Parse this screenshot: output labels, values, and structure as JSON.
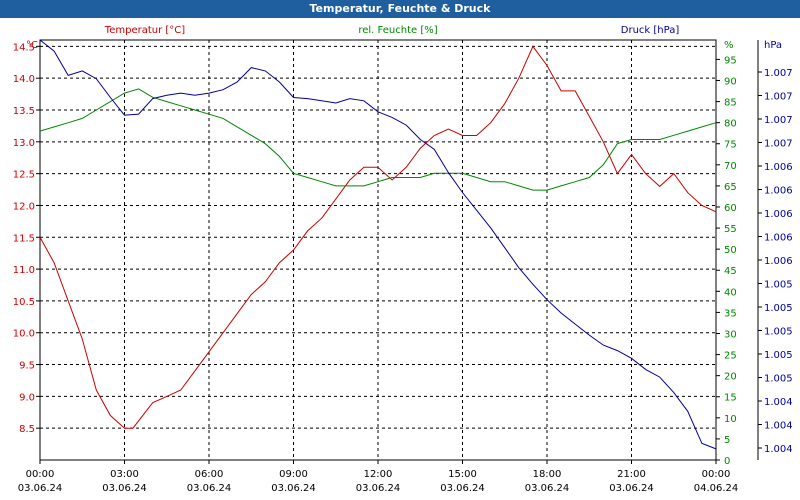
{
  "window": {
    "title": "Temperatur, Feuchte & Druck"
  },
  "colors": {
    "temperature": "#cc0000",
    "humidity": "#008800",
    "pressure": "#000099",
    "title_bar": "#1f5f9f",
    "grid": "#000000"
  },
  "chart_data": {
    "type": "line",
    "title": "Temperatur, Feuchte & Druck",
    "grid": true,
    "x_ticks": [
      {
        "time": "00:00",
        "date": "03.06.24"
      },
      {
        "time": "03:00",
        "date": "03.06.24"
      },
      {
        "time": "06:00",
        "date": "03.06.24"
      },
      {
        "time": "09:00",
        "date": "03.06.24"
      },
      {
        "time": "12:00",
        "date": "03.06.24"
      },
      {
        "time": "15:00",
        "date": "03.06.24"
      },
      {
        "time": "18:00",
        "date": "03.06.24"
      },
      {
        "time": "21:00",
        "date": "03.06.24"
      },
      {
        "time": "00:00",
        "date": "04.06.24"
      }
    ],
    "x_hours_range": [
      0,
      24
    ],
    "axes": {
      "temperature": {
        "label": "Temperatur [°C]",
        "unit": "°C",
        "range": [
          8,
          14.6
        ],
        "ticks": [
          "14.5",
          "14.0",
          "13.5",
          "13.0",
          "12.5",
          "12.0",
          "11.5",
          "11.0",
          "10.5",
          "10.0",
          "9.5",
          "9.0",
          "8.5"
        ]
      },
      "humidity": {
        "label": "rel. Feuchte [%]",
        "unit": "%",
        "range": [
          0,
          99.6
        ],
        "ticks": [
          "95",
          "90",
          "85",
          "80",
          "75",
          "70",
          "65",
          "60",
          "55",
          "50",
          "45",
          "40",
          "35",
          "30",
          "25",
          "20",
          "15",
          "10",
          "5",
          "0"
        ]
      },
      "pressure": {
        "label": "Druck [hPa]",
        "unit": "hPa",
        "range": [
          1.0037,
          1.0075
        ],
        "ticks": [
          "1.007",
          "1.007",
          "1.007",
          "1.007",
          "1.006",
          "1.006",
          "1.006",
          "1.006",
          "1.006",
          "1.005",
          "1.005",
          "1.005",
          "1.005",
          "1.005",
          "1.004",
          "1.004",
          "1.004"
        ]
      }
    },
    "series": [
      {
        "name": "Temperatur [°C]",
        "axis": "temperature",
        "x": [
          0,
          0.5,
          1,
          1.5,
          2,
          2.5,
          3,
          3.3,
          4,
          4.5,
          5,
          5.5,
          6,
          6.5,
          7,
          7.5,
          8,
          8.5,
          9,
          9.5,
          10,
          10.5,
          11,
          11.5,
          12,
          12.5,
          13,
          13.5,
          14,
          14.5,
          15,
          15.5,
          16,
          16.5,
          17,
          17.5,
          18,
          18.5,
          19,
          19.5,
          20,
          20.5,
          21,
          21.5,
          22,
          22.5,
          23,
          23.5,
          24
        ],
        "values": [
          11.5,
          11.1,
          10.5,
          9.9,
          9.1,
          8.7,
          8.5,
          8.5,
          8.9,
          9.0,
          9.1,
          9.4,
          9.7,
          10.0,
          10.3,
          10.6,
          10.8,
          11.1,
          11.3,
          11.6,
          11.8,
          12.1,
          12.4,
          12.6,
          12.6,
          12.4,
          12.6,
          12.9,
          13.1,
          13.2,
          13.1,
          13.1,
          13.3,
          13.6,
          14.0,
          14.5,
          14.2,
          13.8,
          13.8,
          13.4,
          13.0,
          12.5,
          12.8,
          12.5,
          12.3,
          12.5,
          12.2,
          12.0,
          11.9
        ]
      },
      {
        "name": "rel. Feuchte [%]",
        "axis": "humidity",
        "x": [
          0,
          0.5,
          1,
          1.5,
          2,
          2.5,
          3,
          3.5,
          4,
          4.5,
          5,
          5.5,
          6,
          6.5,
          7,
          7.5,
          8,
          8.5,
          9,
          9.5,
          10,
          10.5,
          11,
          11.5,
          12,
          12.5,
          13,
          13.5,
          14,
          14.5,
          15,
          15.5,
          16,
          16.5,
          17,
          17.5,
          18,
          18.5,
          19,
          19.5,
          20,
          20.5,
          21,
          21.5,
          22,
          22.5,
          23,
          23.5,
          24
        ],
        "values": [
          78,
          79,
          80,
          81,
          83,
          85,
          87,
          88,
          86,
          85,
          84,
          83,
          82,
          81,
          79,
          77,
          75,
          72,
          68,
          67,
          66,
          65,
          65,
          65,
          66,
          67,
          67,
          67,
          68,
          68,
          68,
          67,
          66,
          66,
          65,
          64,
          64,
          65,
          66,
          67,
          70,
          75,
          76,
          76,
          76,
          77,
          78,
          79,
          80
        ]
      },
      {
        "name": "Druck [hPa]",
        "axis": "pressure",
        "x": [
          0,
          0.5,
          1,
          1.5,
          2,
          2.5,
          3,
          3.5,
          4,
          4.5,
          5,
          5.5,
          6,
          6.5,
          7,
          7.5,
          8,
          8.5,
          9,
          9.5,
          10,
          10.5,
          11,
          11.5,
          12,
          12.5,
          13,
          13.5,
          14,
          14.5,
          15,
          15.5,
          16,
          16.5,
          17,
          17.5,
          18,
          18.5,
          19,
          19.5,
          20,
          20.5,
          21,
          21.5,
          22,
          22.5,
          23,
          23.5,
          24
        ],
        "values": [
          1.0075,
          1.0074,
          1.00718,
          1.00722,
          1.00715,
          1.00698,
          1.00682,
          1.00683,
          1.00697,
          1.007,
          1.00702,
          1.007,
          1.00702,
          1.00705,
          1.00712,
          1.00725,
          1.00722,
          1.00712,
          1.00698,
          1.00697,
          1.00695,
          1.00693,
          1.00697,
          1.00695,
          1.00685,
          1.0068,
          1.00673,
          1.0066,
          1.00651,
          1.0063,
          1.00612,
          1.00596,
          1.0058,
          1.00562,
          1.00544,
          1.00529,
          1.00515,
          1.00503,
          1.00493,
          1.00483,
          1.00474,
          1.00469,
          1.00462,
          1.00452,
          1.00445,
          1.00431,
          1.00414,
          1.00385,
          1.0038
        ]
      }
    ]
  }
}
